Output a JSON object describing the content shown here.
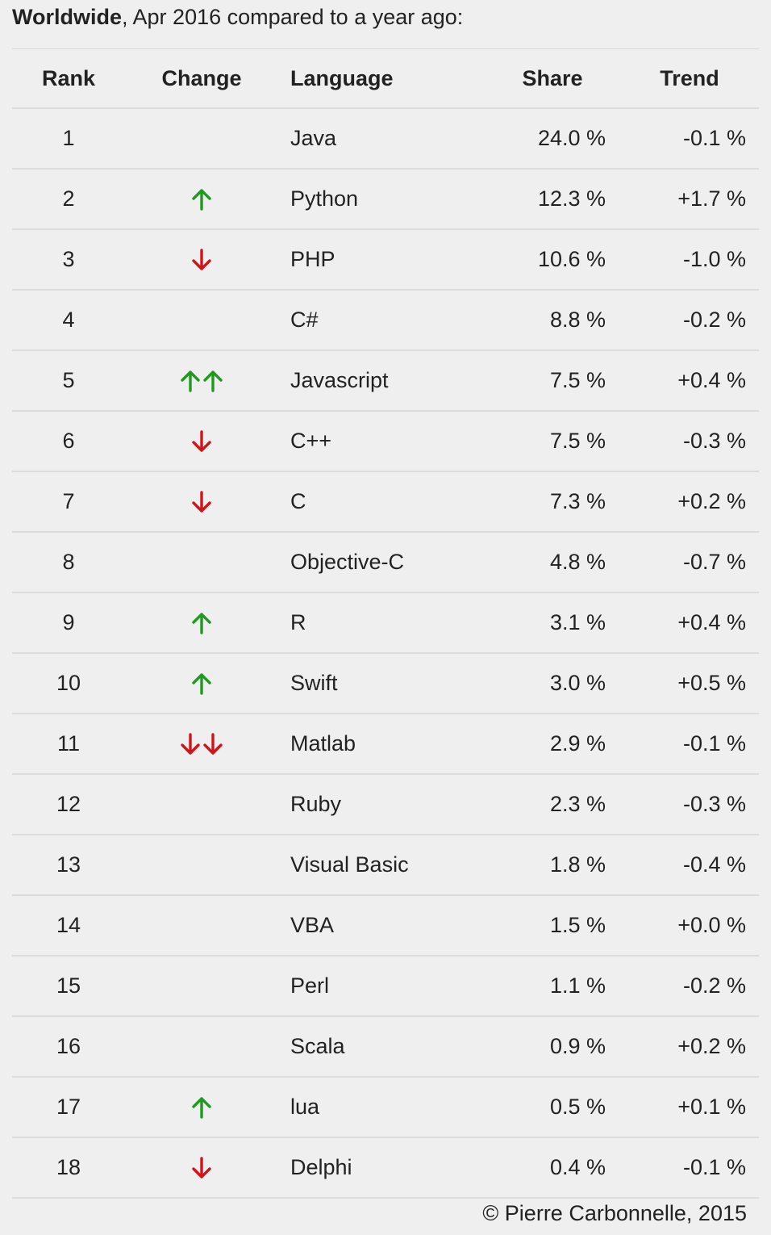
{
  "heading": {
    "bold": "Worldwide",
    "rest": ", Apr 2016 compared to a year ago:"
  },
  "columns": {
    "rank": "Rank",
    "change": "Change",
    "language": "Language",
    "share": "Share",
    "trend": "Trend"
  },
  "colors": {
    "up": "#1f9a1f",
    "down": "#d0141a"
  },
  "rows": [
    {
      "rank": "1",
      "change": "none",
      "language": "Java",
      "share": "24.0 %",
      "trend": "-0.1 %"
    },
    {
      "rank": "2",
      "change": "up",
      "language": "Python",
      "share": "12.3 %",
      "trend": "+1.7 %"
    },
    {
      "rank": "3",
      "change": "down",
      "language": "PHP",
      "share": "10.6 %",
      "trend": "-1.0 %"
    },
    {
      "rank": "4",
      "change": "none",
      "language": "C#",
      "share": "8.8 %",
      "trend": "-0.2 %"
    },
    {
      "rank": "5",
      "change": "up2",
      "language": "Javascript",
      "share": "7.5 %",
      "trend": "+0.4 %"
    },
    {
      "rank": "6",
      "change": "down",
      "language": "C++",
      "share": "7.5 %",
      "trend": "-0.3 %"
    },
    {
      "rank": "7",
      "change": "down",
      "language": "C",
      "share": "7.3 %",
      "trend": "+0.2 %"
    },
    {
      "rank": "8",
      "change": "none",
      "language": "Objective-C",
      "share": "4.8 %",
      "trend": "-0.7 %"
    },
    {
      "rank": "9",
      "change": "up",
      "language": "R",
      "share": "3.1 %",
      "trend": "+0.4 %"
    },
    {
      "rank": "10",
      "change": "up",
      "language": "Swift",
      "share": "3.0 %",
      "trend": "+0.5 %"
    },
    {
      "rank": "11",
      "change": "down2",
      "language": "Matlab",
      "share": "2.9 %",
      "trend": "-0.1 %"
    },
    {
      "rank": "12",
      "change": "none",
      "language": "Ruby",
      "share": "2.3 %",
      "trend": "-0.3 %"
    },
    {
      "rank": "13",
      "change": "none",
      "language": "Visual Basic",
      "share": "1.8 %",
      "trend": "-0.4 %"
    },
    {
      "rank": "14",
      "change": "none",
      "language": "VBA",
      "share": "1.5 %",
      "trend": "+0.0 %"
    },
    {
      "rank": "15",
      "change": "none",
      "language": "Perl",
      "share": "1.1 %",
      "trend": "-0.2 %"
    },
    {
      "rank": "16",
      "change": "none",
      "language": "Scala",
      "share": "0.9 %",
      "trend": "+0.2 %"
    },
    {
      "rank": "17",
      "change": "up",
      "language": "lua",
      "share": "0.5 %",
      "trend": "+0.1 %"
    },
    {
      "rank": "18",
      "change": "down",
      "language": "Delphi",
      "share": "0.4 %",
      "trend": "-0.1 %"
    }
  ],
  "footer": "© Pierre Carbonnelle, 2015"
}
